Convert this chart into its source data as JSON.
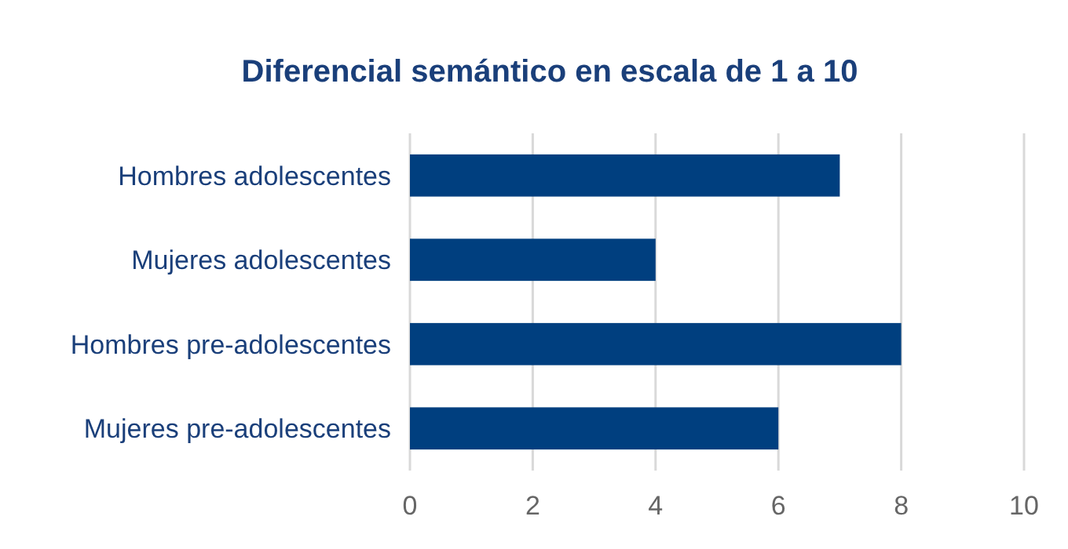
{
  "chart_data": {
    "type": "bar",
    "orientation": "horizontal",
    "title": "Diferencial semántico en escala de 1 a 10",
    "categories": [
      "Hombres adolescentes",
      "Mujeres adolescentes",
      "Hombres pre-adolescentes",
      "Mujeres pre-adolescentes"
    ],
    "values": [
      7,
      4,
      8,
      6
    ],
    "color": "#003f7f",
    "xlim": [
      0,
      10
    ],
    "xticks": [
      0,
      2,
      4,
      6,
      8,
      10
    ],
    "grid": "x"
  }
}
